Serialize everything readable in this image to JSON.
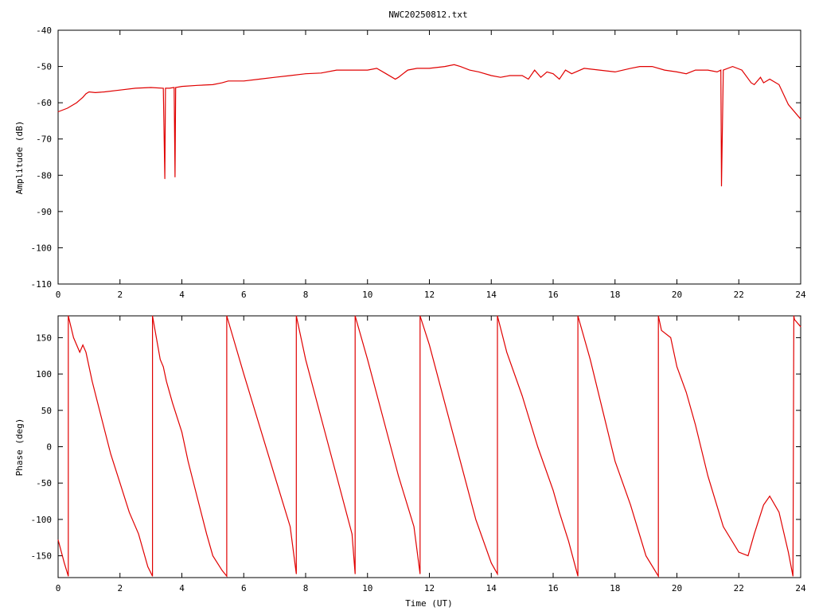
{
  "title": "NWC20250812.txt",
  "colors": {
    "series": "#e00000",
    "axis": "#000000",
    "background": "#ffffff"
  },
  "chart_data": [
    {
      "type": "line",
      "name_panel": "amplitude",
      "title": "NWC20250812.txt",
      "xlabel": "",
      "ylabel": "Amplitude (dB)",
      "xlim": [
        0,
        24
      ],
      "ylim": [
        -110,
        -40
      ],
      "x_ticks": [
        "0",
        "2",
        "4",
        "6",
        "8",
        "10",
        "12",
        "14",
        "16",
        "18",
        "20",
        "22",
        "24"
      ],
      "y_ticks": [
        "-40",
        "-50",
        "-60",
        "-70",
        "-80",
        "-90",
        "-100",
        "-110"
      ],
      "grid": false,
      "series": [
        {
          "x": [
            0,
            0.3,
            0.6,
            0.8,
            0.9,
            1.0,
            1.2,
            1.5,
            2.0,
            2.5,
            3.0,
            3.4,
            3.45,
            3.47,
            3.5,
            3.6,
            3.75,
            3.78,
            3.8,
            4.0,
            4.5,
            5.0,
            5.3,
            5.5,
            6.0,
            6.5,
            7.0,
            7.5,
            8.0,
            8.5,
            9.0,
            9.5,
            10.0,
            10.3,
            10.6,
            10.9,
            11.0,
            11.3,
            11.6,
            12.0,
            12.5,
            12.8,
            13.0,
            13.3,
            13.6,
            14.0,
            14.3,
            14.6,
            15.0,
            15.2,
            15.4,
            15.6,
            15.8,
            16.0,
            16.2,
            16.4,
            16.6,
            17.0,
            17.5,
            18.0,
            18.5,
            18.8,
            19.2,
            19.6,
            20.0,
            20.3,
            20.6,
            21.0,
            21.3,
            21.42,
            21.44,
            21.5,
            21.8,
            22.1,
            22.4,
            22.5,
            22.7,
            22.8,
            23.0,
            23.3,
            23.6,
            24.0
          ],
          "values": [
            -62.5,
            -61.5,
            -60.0,
            -58.5,
            -57.5,
            -57.0,
            -57.2,
            -57.0,
            -56.5,
            -56.0,
            -55.8,
            -56.0,
            -81,
            -56.0,
            -56.0,
            -56.0,
            -55.8,
            -80.5,
            -55.8,
            -55.5,
            -55.2,
            -55.0,
            -54.5,
            -54.0,
            -54.0,
            -53.5,
            -53.0,
            -52.5,
            -52.0,
            -51.8,
            -51.0,
            -51.0,
            -51.0,
            -50.5,
            -52.0,
            -53.5,
            -53.0,
            -51.0,
            -50.5,
            -50.5,
            -50.0,
            -49.5,
            -50.0,
            -51.0,
            -51.5,
            -52.5,
            -53.0,
            -52.5,
            -52.5,
            -53.5,
            -51.0,
            -53.0,
            -51.5,
            -52.0,
            -53.5,
            -51.0,
            -52.0,
            -50.5,
            -51.0,
            -51.5,
            -50.5,
            -50.0,
            -50.0,
            -51.0,
            -51.5,
            -52.0,
            -51.0,
            -51.0,
            -51.5,
            -51.0,
            -83.0,
            -51.0,
            -50.0,
            -51.0,
            -54.5,
            -55.0,
            -53.0,
            -54.5,
            -53.5,
            -55.0,
            -60.5,
            -64.5
          ]
        }
      ]
    },
    {
      "type": "line",
      "name_panel": "phase",
      "title": "",
      "xlabel": "Time (UT)",
      "ylabel": "Phase (deg)",
      "xlim": [
        0,
        24
      ],
      "ylim": [
        -180,
        180
      ],
      "x_ticks": [
        "0",
        "2",
        "4",
        "6",
        "8",
        "10",
        "12",
        "14",
        "16",
        "18",
        "20",
        "22",
        "24"
      ],
      "y_ticks": [
        "150",
        "100",
        "50",
        "0",
        "-50",
        "-100",
        "-150"
      ],
      "grid": false,
      "series": [
        {
          "x": [
            0,
            0.2,
            0.33,
            0.33,
            0.5,
            0.7,
            0.8,
            0.9,
            1.1,
            1.4,
            1.7,
            2.0,
            2.3,
            2.6,
            2.9,
            3.05,
            3.05,
            3.3,
            3.4,
            3.5,
            3.7,
            4.0,
            4.2,
            4.5,
            4.8,
            5.0,
            5.3,
            5.45,
            5.45,
            6.0,
            6.5,
            7.0,
            7.5,
            7.7,
            7.7,
            8.0,
            8.5,
            9.0,
            9.5,
            9.6,
            9.6,
            10.0,
            10.5,
            11.0,
            11.5,
            11.7,
            11.7,
            12.0,
            12.5,
            13.0,
            13.5,
            14.0,
            14.2,
            14.2,
            14.5,
            15.0,
            15.5,
            16.0,
            16.2,
            16.5,
            16.8,
            16.8,
            17.2,
            17.6,
            18.0,
            18.5,
            19.0,
            19.4,
            19.4,
            19.5,
            19.8,
            20.0,
            20.3,
            20.6,
            21.0,
            21.5,
            22.0,
            22.3,
            22.5,
            22.8,
            23.0,
            23.3,
            23.6,
            23.75,
            23.78,
            23.8,
            24.0
          ],
          "values": [
            -128,
            -160,
            -178,
            180,
            150,
            130,
            140,
            130,
            90,
            40,
            -10,
            -50,
            -90,
            -120,
            -165,
            -178,
            180,
            120,
            110,
            90,
            60,
            20,
            -20,
            -70,
            -120,
            -150,
            -170,
            -178,
            180,
            100,
            30,
            -40,
            -110,
            -175,
            180,
            120,
            40,
            -40,
            -120,
            -175,
            180,
            120,
            40,
            -40,
            -110,
            -175,
            180,
            140,
            60,
            -20,
            -100,
            -160,
            -175,
            180,
            130,
            70,
            0,
            -60,
            -90,
            -130,
            -178,
            180,
            120,
            50,
            -20,
            -80,
            -150,
            -178,
            180,
            160,
            150,
            110,
            75,
            30,
            -40,
            -110,
            -145,
            -150,
            -120,
            -80,
            -68,
            -90,
            -145,
            -178,
            180,
            175,
            165
          ]
        }
      ]
    }
  ]
}
